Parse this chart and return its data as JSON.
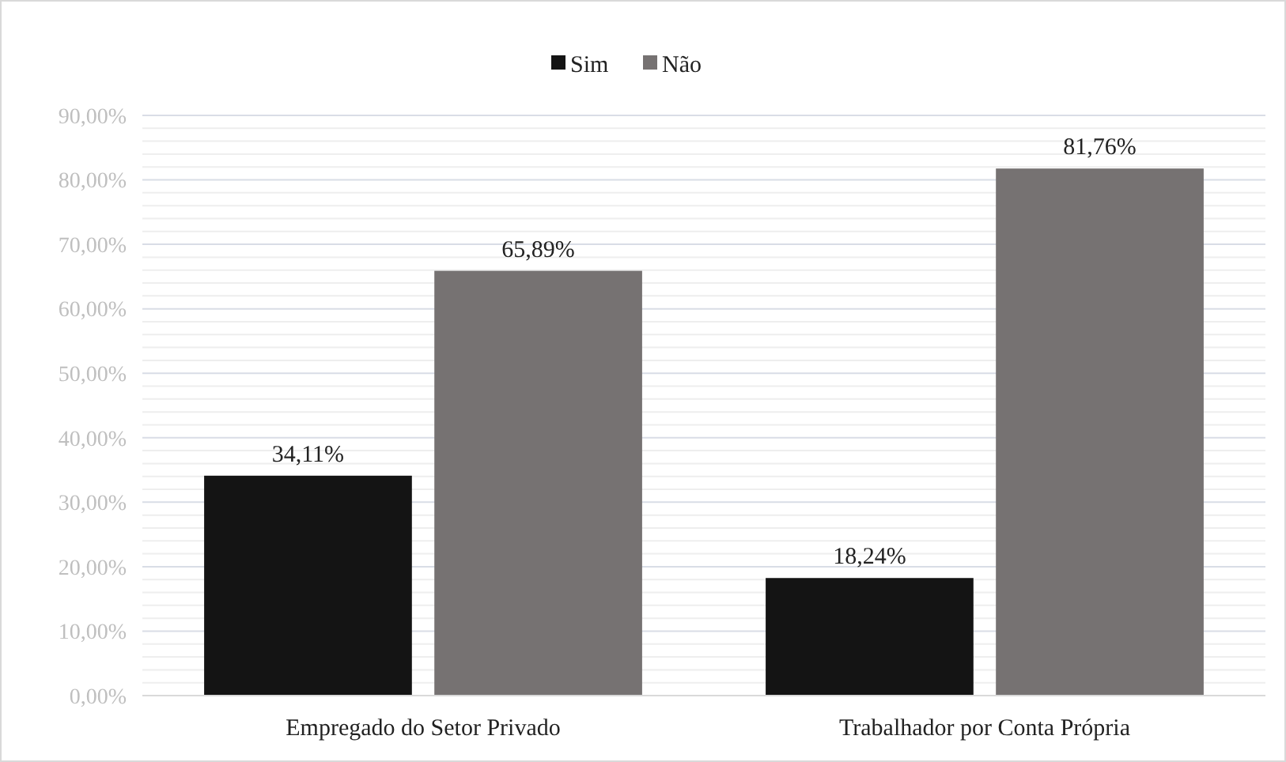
{
  "chart_data": {
    "type": "bar",
    "categories": [
      "Empregado do Setor Privado",
      "Trabalhador por Conta Própria"
    ],
    "series": [
      {
        "name": "Sim",
        "color": "#141414",
        "values": [
          34.11,
          18.24
        ],
        "value_labels": [
          "34,11%",
          "18,24%"
        ]
      },
      {
        "name": "Não",
        "color": "#767272",
        "values": [
          65.89,
          81.76
        ],
        "value_labels": [
          "65,89%",
          "81,76%"
        ]
      }
    ],
    "ylim": [
      0,
      90
    ],
    "yticks": [
      {
        "value": 0,
        "label": "0,00%"
      },
      {
        "value": 2,
        "label": null
      },
      {
        "value": 4,
        "label": null
      },
      {
        "value": 6,
        "label": null
      },
      {
        "value": 8,
        "label": null
      },
      {
        "value": 10,
        "label": "10,00%"
      },
      {
        "value": 12,
        "label": null
      },
      {
        "value": 14,
        "label": null
      },
      {
        "value": 16,
        "label": null
      },
      {
        "value": 18,
        "label": null
      },
      {
        "value": 20,
        "label": "20,00%"
      },
      {
        "value": 22,
        "label": null
      },
      {
        "value": 24,
        "label": null
      },
      {
        "value": 26,
        "label": null
      },
      {
        "value": 28,
        "label": null
      },
      {
        "value": 30,
        "label": "30,00%"
      },
      {
        "value": 32,
        "label": null
      },
      {
        "value": 34,
        "label": null
      },
      {
        "value": 36,
        "label": null
      },
      {
        "value": 38,
        "label": null
      },
      {
        "value": 40,
        "label": "40,00%"
      },
      {
        "value": 42,
        "label": null
      },
      {
        "value": 44,
        "label": null
      },
      {
        "value": 46,
        "label": null
      },
      {
        "value": 48,
        "label": null
      },
      {
        "value": 50,
        "label": "50,00%"
      },
      {
        "value": 52,
        "label": null
      },
      {
        "value": 54,
        "label": null
      },
      {
        "value": 56,
        "label": null
      },
      {
        "value": 58,
        "label": null
      },
      {
        "value": 60,
        "label": "60,00%"
      },
      {
        "value": 62,
        "label": null
      },
      {
        "value": 64,
        "label": null
      },
      {
        "value": 66,
        "label": null
      },
      {
        "value": 68,
        "label": null
      },
      {
        "value": 70,
        "label": "70,00%"
      },
      {
        "value": 72,
        "label": null
      },
      {
        "value": 74,
        "label": null
      },
      {
        "value": 76,
        "label": null
      },
      {
        "value": 78,
        "label": null
      },
      {
        "value": 80,
        "label": "80,00%"
      },
      {
        "value": 82,
        "label": null
      },
      {
        "value": 84,
        "label": null
      },
      {
        "value": 86,
        "label": null
      },
      {
        "value": 88,
        "label": null
      },
      {
        "value": 90,
        "label": "90,00%"
      }
    ],
    "grid": "y",
    "legend": "top"
  }
}
